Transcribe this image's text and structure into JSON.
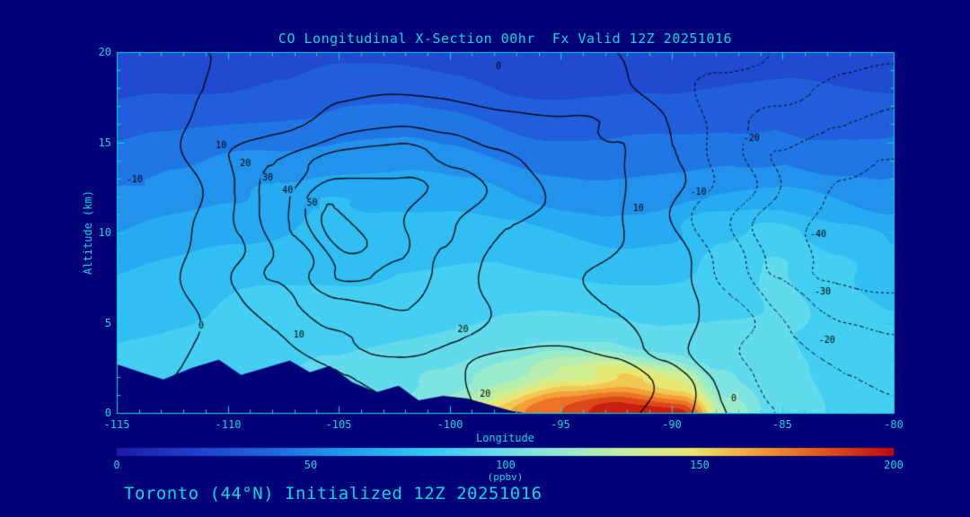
{
  "title": "CO Longitudinal X-Section 00hr  Fx Valid 12Z 20251016",
  "caption": "Toronto (44°N) Initialized 12Z 20251016",
  "axes": {
    "x_label": "Longitude",
    "y_label": "Altitude (km)",
    "x_range": [
      -115,
      -80
    ],
    "y_range": [
      0,
      20
    ],
    "x_ticks": [
      "-115",
      "-110",
      "-105",
      "-100",
      "-95",
      "-90",
      "-85",
      "-80"
    ],
    "y_ticks": [
      "0",
      "5",
      "10",
      "15",
      "20"
    ]
  },
  "colorbar": {
    "label": "(ppbv)",
    "range": [
      0,
      200
    ],
    "ticks": [
      "0",
      "50",
      "100",
      "150",
      "200"
    ]
  },
  "colors": {
    "background": "#000078",
    "text": "#00dcdc",
    "contour_line": "#000000"
  },
  "chart_data": {
    "type": "heatmap",
    "title": "CO Longitudinal X-Section 00hr  Fx Valid 12Z 20251016",
    "xlabel": "Longitude",
    "ylabel": "Altitude (km)",
    "units": "ppbv",
    "x": [
      -115,
      -112.5,
      -110,
      -107.5,
      -105,
      -102.5,
      -100,
      -97.5,
      -95,
      -92.5,
      -90,
      -87.5,
      -85,
      -82.5,
      -80
    ],
    "y": [
      0,
      2,
      4,
      6,
      8,
      10,
      12,
      14,
      16,
      18,
      20
    ],
    "fill_band_step": 10,
    "fill_values_ppbv": [
      [
        85,
        88,
        90,
        92,
        95,
        105,
        125,
        155,
        178,
        196,
        200,
        120,
        95,
        90,
        88
      ],
      [
        82,
        85,
        88,
        90,
        92,
        96,
        104,
        116,
        132,
        152,
        142,
        102,
        92,
        88,
        86
      ],
      [
        80,
        82,
        85,
        86,
        88,
        90,
        92,
        95,
        98,
        100,
        97,
        92,
        90,
        86,
        84
      ],
      [
        75,
        78,
        80,
        82,
        84,
        85,
        86,
        87,
        88,
        88,
        86,
        88,
        92,
        86,
        80
      ],
      [
        70,
        72,
        74,
        76,
        78,
        80,
        80,
        80,
        79,
        78,
        78,
        85,
        91,
        84,
        76
      ],
      [
        60,
        63,
        66,
        70,
        75,
        75,
        74,
        72,
        70,
        68,
        68,
        76,
        82,
        76,
        68
      ],
      [
        52,
        55,
        58,
        65,
        71,
        68,
        64,
        60,
        58,
        56,
        55,
        60,
        64,
        60,
        55
      ],
      [
        45,
        47,
        50,
        54,
        58,
        56,
        52,
        50,
        48,
        46,
        45,
        48,
        50,
        48,
        45
      ],
      [
        35,
        37,
        40,
        42,
        45,
        44,
        42,
        40,
        38,
        37,
        36,
        38,
        40,
        38,
        36
      ],
      [
        26,
        28,
        30,
        32,
        34,
        33,
        32,
        30,
        29,
        28,
        28,
        30,
        32,
        30,
        28
      ],
      [
        20,
        22,
        24,
        26,
        28,
        27,
        26,
        25,
        24,
        24,
        23,
        25,
        27,
        25,
        22
      ]
    ],
    "overlay_contours": {
      "description": "solid = positive difference contours, dotted = negative",
      "values": [
        [
          -2,
          0,
          2,
          4,
          5,
          8,
          15,
          22,
          26,
          24,
          12,
          0,
          -10,
          -16,
          -18
        ],
        [
          -3,
          0,
          3,
          6,
          10,
          14,
          18,
          24,
          27,
          25,
          14,
          -2,
          -14,
          -20,
          -22
        ],
        [
          -5,
          -1,
          4,
          10,
          18,
          22,
          20,
          18,
          18,
          16,
          8,
          -6,
          -20,
          -26,
          -28
        ],
        [
          -7,
          -2,
          6,
          16,
          28,
          30,
          24,
          18,
          14,
          10,
          4,
          -10,
          -26,
          -34,
          -36
        ],
        [
          -9,
          -3,
          8,
          24,
          42,
          38,
          28,
          18,
          12,
          8,
          2,
          -14,
          -32,
          -42,
          -44
        ],
        [
          -10,
          -4,
          10,
          30,
          55,
          45,
          32,
          20,
          14,
          10,
          2,
          -16,
          -36,
          -46,
          -48
        ],
        [
          -10,
          -4,
          10,
          28,
          50,
          44,
          34,
          24,
          18,
          12,
          2,
          -16,
          -34,
          -44,
          -45
        ],
        [
          -9,
          -3,
          8,
          20,
          36,
          34,
          28,
          22,
          18,
          12,
          0,
          -18,
          -32,
          -38,
          -40
        ],
        [
          -7,
          -2,
          4,
          10,
          18,
          18,
          16,
          14,
          12,
          8,
          -2,
          -16,
          -26,
          -30,
          -32
        ],
        [
          -5,
          -1,
          1,
          3,
          6,
          7,
          7,
          6,
          5,
          2,
          -4,
          -12,
          -18,
          -22,
          -24
        ],
        [
          -3,
          0,
          0,
          1,
          2,
          2,
          2,
          2,
          1,
          0,
          -4,
          -8,
          -12,
          -15,
          -16
        ]
      ],
      "solid_levels": [
        0,
        10,
        20,
        30,
        40,
        50
      ],
      "dotted_levels": [
        -40,
        -30,
        -20,
        -10
      ],
      "labels": [
        {
          "text": "10",
          "lon": -110.3,
          "alt": 14.8
        },
        {
          "text": "20",
          "lon": -109.2,
          "alt": 13.8
        },
        {
          "text": "30",
          "lon": -108.2,
          "alt": 13.0
        },
        {
          "text": "40",
          "lon": -107.3,
          "alt": 12.3
        },
        {
          "text": "50",
          "lon": -106.2,
          "alt": 11.6
        },
        {
          "text": "10",
          "lon": -91.5,
          "alt": 11.3
        },
        {
          "text": "20",
          "lon": -99.4,
          "alt": 4.6
        },
        {
          "text": "10",
          "lon": -106.8,
          "alt": 4.3
        },
        {
          "text": "0",
          "lon": -111.2,
          "alt": 4.8
        },
        {
          "text": "20",
          "lon": -98.4,
          "alt": 1.0
        },
        {
          "text": "0",
          "lon": -87.2,
          "alt": 0.8
        },
        {
          "text": "0",
          "lon": -97.8,
          "alt": 19.2
        },
        {
          "text": "-10",
          "lon": -114.2,
          "alt": 12.9
        },
        {
          "text": "-10",
          "lon": -88.8,
          "alt": 12.2
        },
        {
          "text": "-20",
          "lon": -86.4,
          "alt": 15.2
        },
        {
          "text": "-40",
          "lon": -83.4,
          "alt": 9.9
        },
        {
          "text": "-30",
          "lon": -83.2,
          "alt": 6.7
        },
        {
          "text": "-20",
          "lon": -83.0,
          "alt": 4.0
        }
      ]
    },
    "terrain_profile": {
      "points": [
        [
          -115,
          2.7
        ],
        [
          -113.8,
          2.2
        ],
        [
          -112.9,
          1.85
        ],
        [
          -111.6,
          2.5
        ],
        [
          -110.4,
          2.95
        ],
        [
          -109.4,
          2.1
        ],
        [
          -108.3,
          2.5
        ],
        [
          -107.2,
          2.9
        ],
        [
          -106.3,
          2.25
        ],
        [
          -105.4,
          2.6
        ],
        [
          -104.4,
          1.7
        ],
        [
          -103.3,
          1.15
        ],
        [
          -102.3,
          1.5
        ],
        [
          -101.4,
          0.7
        ],
        [
          -100.3,
          0.95
        ],
        [
          -99.2,
          0.8
        ],
        [
          -98.2,
          0.45
        ],
        [
          -97.2,
          0.1
        ],
        [
          -96.6,
          0
        ]
      ]
    },
    "colormap": [
      [
        0.0,
        "#1c1ca8"
      ],
      [
        0.1,
        "#2040cc"
      ],
      [
        0.2,
        "#2068e0"
      ],
      [
        0.3,
        "#22a0f0"
      ],
      [
        0.4,
        "#34c8f4"
      ],
      [
        0.5,
        "#6fe0ea"
      ],
      [
        0.58,
        "#9becc9"
      ],
      [
        0.66,
        "#c9f09b"
      ],
      [
        0.74,
        "#eee66a"
      ],
      [
        0.82,
        "#f5a238"
      ],
      [
        0.9,
        "#e65c1e"
      ],
      [
        1.0,
        "#c00a0a"
      ]
    ],
    "legend_position": "bottom-colorbar",
    "grid": false
  }
}
